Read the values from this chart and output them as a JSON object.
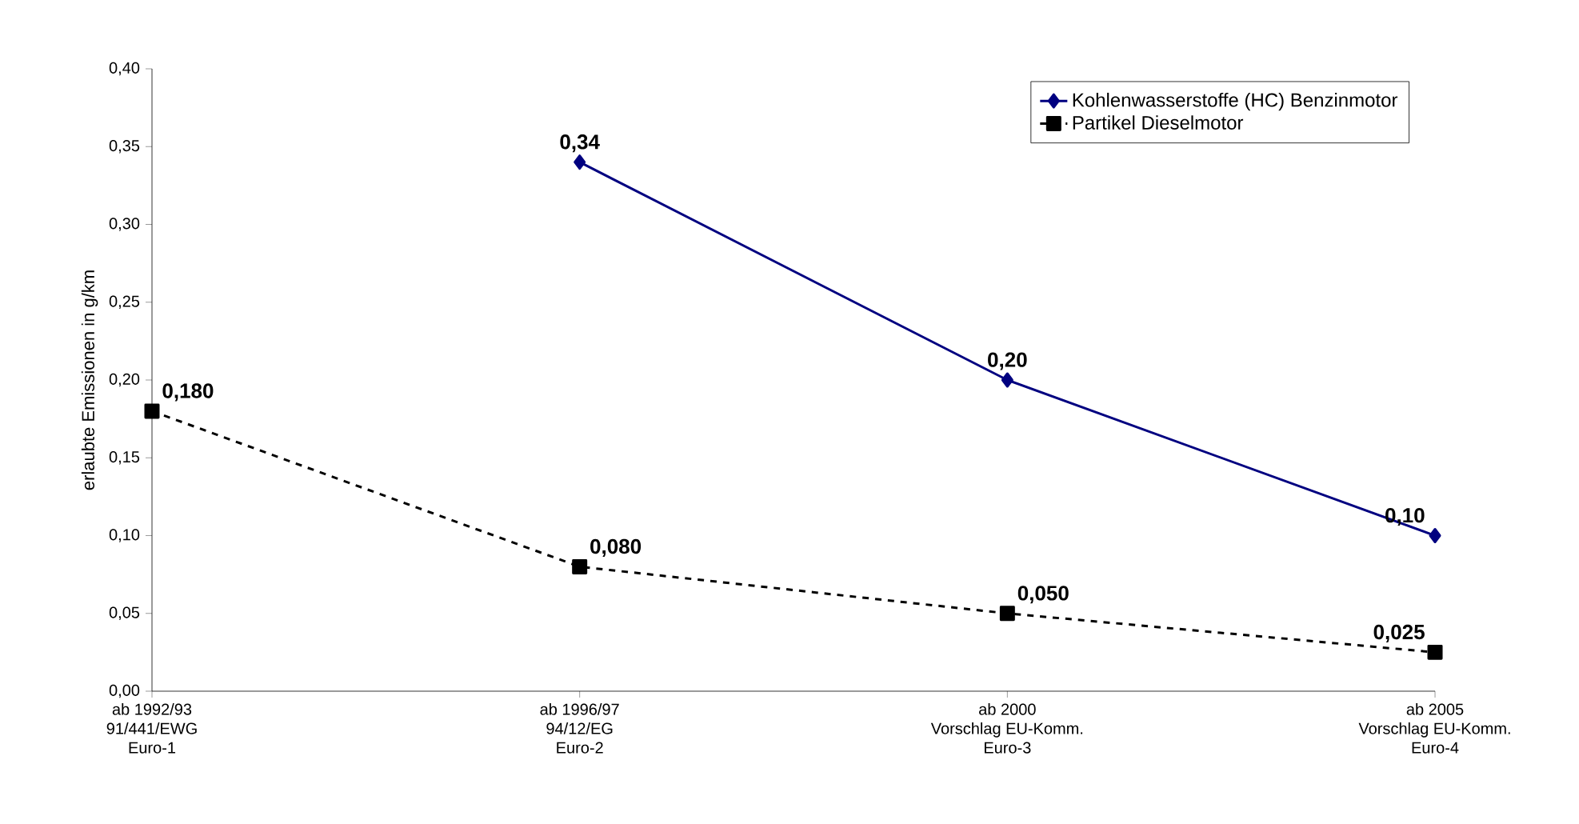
{
  "chart_data": {
    "type": "line",
    "ylabel": "erlaubte Emissionen in g/km",
    "categories": [
      "ab 1992/93\n91/441/EWG\nEuro-1",
      "ab 1996/97\n94/12/EG\nEuro-2",
      "ab 2000\nVorschlag EU-Komm.\nEuro-3",
      "ab 2005\nVorschlag EU-Komm.\nEuro-4"
    ],
    "series": [
      {
        "name": "Kohlenwasserstoffe (HC) Benzinmotor",
        "color": "#000080",
        "values": [
          null,
          0.34,
          0.2,
          0.1
        ],
        "marker": "diamond",
        "line_style": "solid",
        "value_labels": [
          null,
          "0,34",
          "0,20",
          "0,10"
        ]
      },
      {
        "name": "Partikel Dieselmotor",
        "color": "#000000",
        "values": [
          0.18,
          0.08,
          0.05,
          0.025
        ],
        "marker": "square",
        "line_style": "dashed",
        "value_labels": [
          "0,180",
          "0,080",
          "0,050",
          "0,025"
        ]
      }
    ],
    "ylim": [
      0,
      0.4
    ],
    "yticks": [
      {
        "value": 0,
        "label": "0,00"
      },
      {
        "value": 0.05,
        "label": "0,05"
      },
      {
        "value": 0.1,
        "label": "0,10"
      },
      {
        "value": 0.15,
        "label": "0,15"
      },
      {
        "value": 0.2,
        "label": "0,20"
      },
      {
        "value": 0.25,
        "label": "0,25"
      },
      {
        "value": 0.3,
        "label": "0,30"
      },
      {
        "value": 0.35,
        "label": "0,35"
      },
      {
        "value": 0.4,
        "label": "0,40"
      }
    ],
    "grid": false,
    "legend": "top right"
  }
}
